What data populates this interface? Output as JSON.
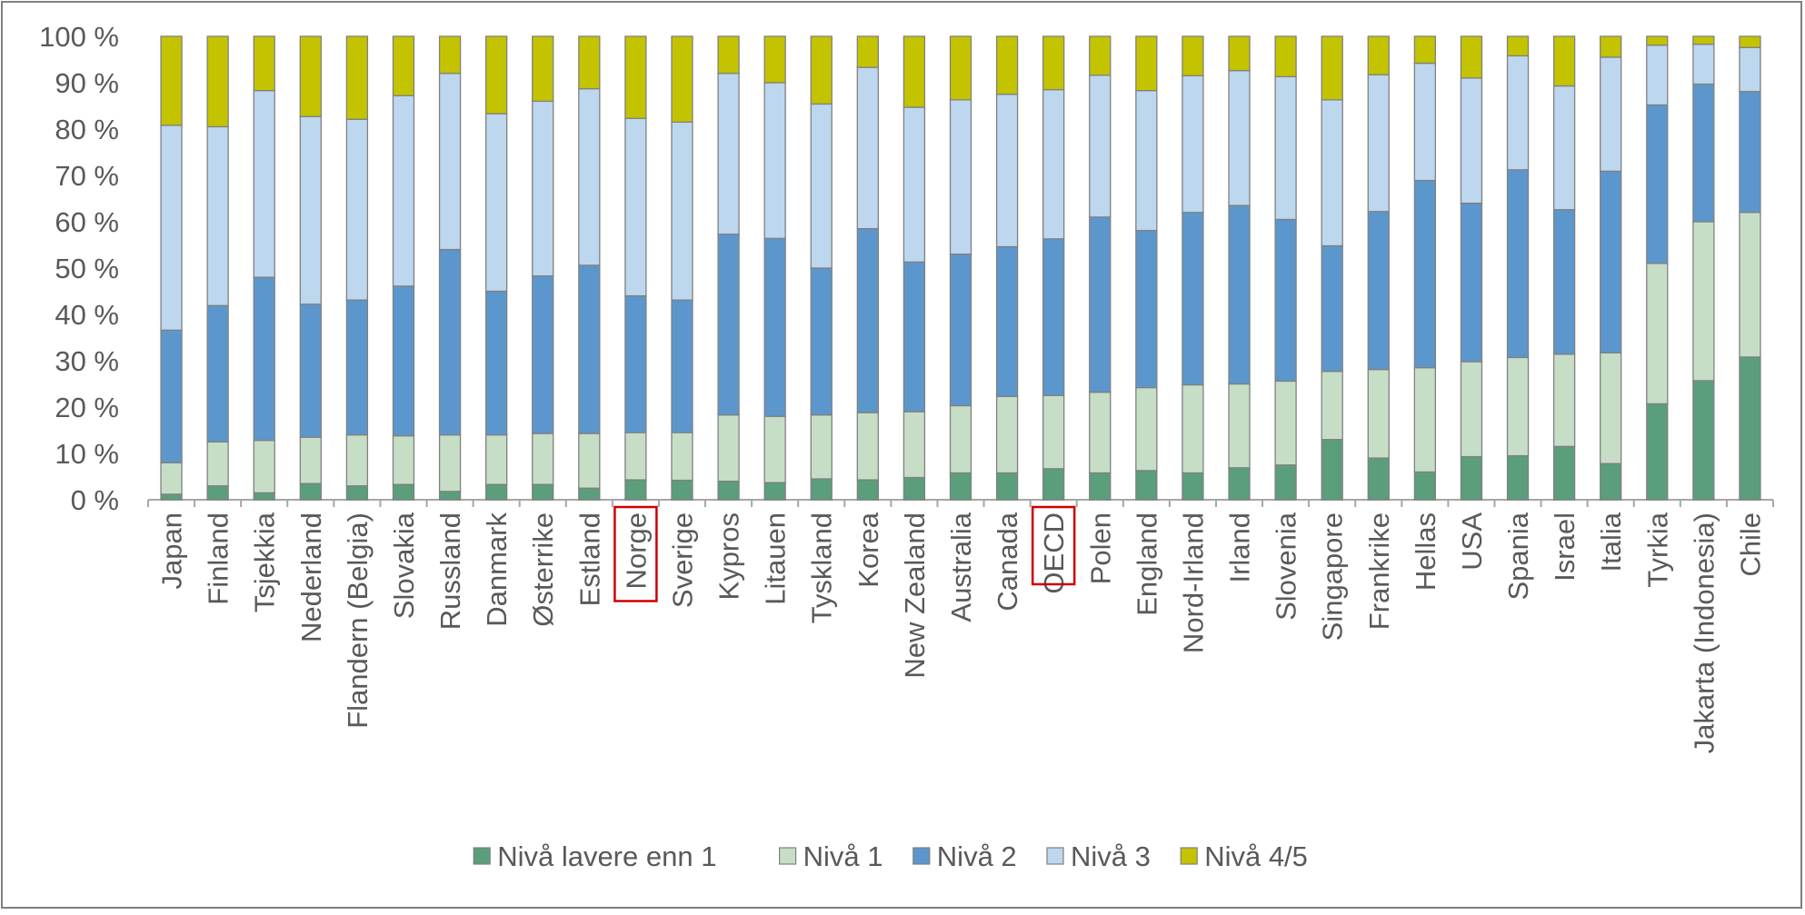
{
  "chart_data": {
    "type": "bar",
    "stacked": true,
    "percent": true,
    "title": "",
    "xlabel": "",
    "ylabel": "",
    "ylim": [
      0,
      100
    ],
    "yticks": [
      "0 %",
      "10 %",
      "20 %",
      "30 %",
      "40 %",
      "50 %",
      "60 %",
      "70 %",
      "80 %",
      "90 %",
      "100 %"
    ],
    "grid": false,
    "legend_position": "bottom",
    "highlighted_categories": [
      "Norge",
      "OECD"
    ],
    "highlight_color": "#cc0000",
    "categories": [
      "Japan",
      "Finland",
      "Tsjekkia",
      "Nederland",
      "Flandern (Belgia)",
      "Slovakia",
      "Russland",
      "Danmark",
      "Østerrike",
      "Estland",
      "Norge",
      "Sverige",
      "Kypros",
      "Litauen",
      "Tyskland",
      "Korea",
      "New Zealand",
      "Australia",
      "Canada",
      "OECD",
      "Polen",
      "England",
      "Nord-Irland",
      "Irland",
      "Slovenia",
      "Singapore",
      "Frankrike",
      "Hellas",
      "USA",
      "Spania",
      "Israel",
      "Italia",
      "Tyrkia",
      "Jakarta (Indonesia)",
      "Chile"
    ],
    "series": [
      {
        "name": "Nivå lavere enn 1",
        "color": "#5a9e7c",
        "values": [
          1.2,
          3,
          1.5,
          3.5,
          3,
          3.3,
          1.8,
          3.3,
          3.3,
          2.5,
          4.3,
          4.2,
          4,
          3.7,
          4.5,
          4.3,
          4.8,
          5.8,
          5.8,
          6.7,
          5.8,
          6.3,
          5.8,
          6.9,
          7.5,
          13,
          9,
          6,
          9.3,
          9.5,
          11.5,
          7.8,
          20.7,
          25.7,
          30.8
        ]
      },
      {
        "name": "Nivå 1",
        "color": "#c6dec6",
        "values": [
          6.8,
          9.5,
          11.3,
          10,
          11,
          10.5,
          12.2,
          10.7,
          11,
          11.8,
          10.2,
          10.3,
          14.3,
          14.3,
          13.8,
          14.5,
          14.2,
          14.5,
          16.5,
          15.8,
          17.4,
          17.9,
          19,
          18.1,
          18.1,
          14.7,
          19.1,
          22.5,
          20.5,
          21.2,
          19.9,
          23.9,
          30.3,
          34.3,
          31.2
        ]
      },
      {
        "name": "Nivå 2",
        "color": "#5b97cd",
        "values": [
          28.6,
          29.4,
          35.2,
          28.7,
          29.1,
          32.3,
          40,
          31,
          34,
          36.3,
          29.5,
          28.6,
          39,
          38.4,
          31.7,
          39.7,
          32.3,
          32.7,
          32.3,
          33.8,
          37.8,
          33.9,
          37.2,
          38.5,
          34.9,
          27.1,
          34.1,
          40.4,
          34.2,
          40.5,
          31.2,
          39.2,
          34.2,
          29.7,
          26.1
        ]
      },
      {
        "name": "Nivå 3",
        "color": "#bdd7ee",
        "values": [
          44.2,
          38.6,
          40.3,
          40.5,
          39,
          41.1,
          38,
          38.3,
          37.7,
          38.1,
          38.3,
          38.4,
          34.7,
          33.6,
          35.4,
          34.8,
          33.4,
          33.3,
          32.9,
          32.2,
          30.6,
          30.2,
          29.5,
          29.1,
          30.8,
          31.5,
          29.5,
          25.3,
          27,
          24.6,
          26.7,
          24.6,
          12.9,
          8.6,
          9.5
        ]
      },
      {
        "name": "Nivå 4/5",
        "color": "#c3c300",
        "values": [
          19.2,
          19.5,
          11.7,
          17.3,
          17.9,
          12.8,
          8,
          16.7,
          14,
          11.3,
          17.7,
          18.5,
          8,
          10,
          14.6,
          6.7,
          15.3,
          13.7,
          12.5,
          11.5,
          8.4,
          11.7,
          8.5,
          7.4,
          8.7,
          13.7,
          8.3,
          5.8,
          9,
          4.2,
          10.7,
          4.5,
          1.9,
          1.7,
          2.4
        ]
      }
    ]
  }
}
